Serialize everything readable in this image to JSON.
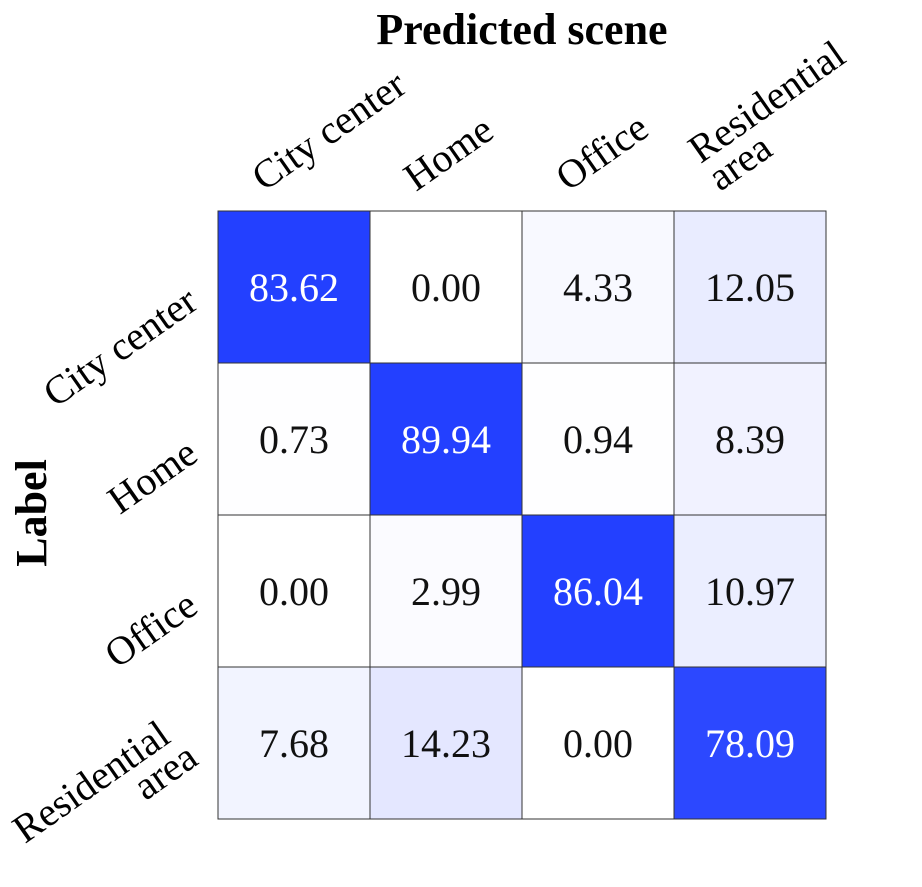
{
  "chart_data": {
    "type": "heatmap",
    "title": "Predicted scene",
    "y_label": "Label",
    "x_categories": [
      "City center",
      "Home",
      "Office",
      "Residential area"
    ],
    "y_categories": [
      "City center",
      "Home",
      "Office",
      "Residential area"
    ],
    "values": [
      [
        83.62,
        0,
        4.33,
        12.05
      ],
      [
        0.73,
        89.94,
        0.94,
        8.39
      ],
      [
        0,
        2.99,
        86.04,
        10.97
      ],
      [
        7.68,
        14.23,
        0,
        78.09
      ]
    ],
    "value_labels": [
      [
        "83.62",
        "0.00",
        "4.33",
        "12.05"
      ],
      [
        "0.73",
        "89.94",
        "0.94",
        "8.39"
      ],
      [
        "0.00",
        "2.99",
        "86.04",
        "10.97"
      ],
      [
        "7.68",
        "14.23",
        "0.00",
        "78.09"
      ]
    ],
    "colors": [
      "#ffffff",
      "#2340ff"
    ]
  }
}
